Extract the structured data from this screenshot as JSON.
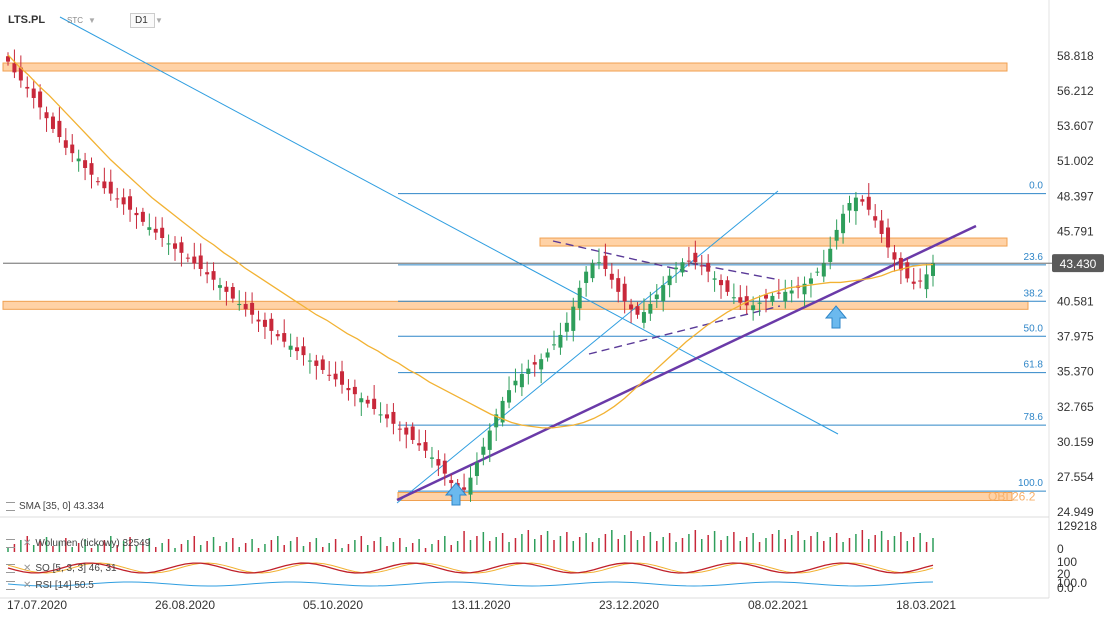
{
  "header": {
    "symbol": "LTS.PL",
    "exchange": "STC",
    "timeframe": "D1"
  },
  "chart_data": {
    "type": "candlestick",
    "y_axis_ticks": [
      "58.818",
      "56.212",
      "53.607",
      "51.002",
      "48.397",
      "45.791",
      "43.186",
      "40.581",
      "37.975",
      "35.370",
      "32.765",
      "30.159",
      "27.554",
      "24.949"
    ],
    "ylim": [
      24.949,
      58.818
    ],
    "x_axis_ticks": [
      "17.07.2020",
      "26.08.2020",
      "05.10.2020",
      "13.11.2020",
      "23.12.2020",
      "08.02.2021",
      "18.03.2021"
    ],
    "current_price": "43.430",
    "fibonacci_levels": [
      {
        "label": "0.0",
        "price": 48.6
      },
      {
        "label": "23.6",
        "price": 43.3
      },
      {
        "label": "38.2",
        "price": 40.6
      },
      {
        "label": "50.0",
        "price": 38.0
      },
      {
        "label": "61.8",
        "price": 35.3
      },
      {
        "label": "78.6",
        "price": 31.4
      },
      {
        "label": "100.0",
        "price": 26.5
      }
    ],
    "resistance_zones": [
      58.0,
      45.0,
      40.3,
      26.1
    ],
    "zone_label": "OBI 26.2",
    "close_series": [
      58.4,
      57.6,
      57.0,
      56.4,
      55.7,
      55.0,
      54.2,
      53.4,
      52.8,
      52.0,
      51.6,
      51.2,
      50.5,
      50.0,
      49.5,
      49.0,
      48.6,
      48.2,
      47.8,
      47.4,
      47.0,
      46.5,
      46.1,
      45.7,
      45.3,
      44.9,
      44.5,
      44.2,
      43.8,
      43.4,
      43.0,
      42.6,
      42.2,
      41.8,
      41.3,
      40.8,
      40.4,
      40.0,
      39.6,
      39.1,
      38.7,
      38.4,
      38.0,
      37.6,
      37.3,
      36.9,
      36.6,
      36.2,
      35.8,
      35.5,
      35.1,
      34.8,
      34.4,
      34.0,
      33.7,
      33.4,
      33.0,
      32.6,
      32.2,
      31.9,
      31.5,
      31.1,
      30.7,
      30.3,
      29.9,
      29.5,
      29.0,
      28.4,
      27.8,
      27.1,
      26.3,
      26.6,
      27.5,
      28.6,
      29.8,
      31.0,
      32.2,
      33.2,
      34.0,
      34.7,
      35.2,
      35.6,
      35.9,
      36.3,
      36.8,
      37.4,
      38.1,
      39.0,
      40.2,
      41.6,
      42.8,
      43.4,
      43.5,
      43.0,
      42.2,
      41.3,
      40.6,
      40.0,
      39.6,
      39.8,
      40.4,
      41.1,
      41.8,
      42.5,
      43.1,
      43.5,
      43.6,
      43.5,
      43.2,
      42.8,
      42.3,
      41.8,
      41.3,
      40.9,
      40.5,
      40.3,
      40.3,
      40.5,
      40.8,
      41.0,
      41.2,
      41.3,
      41.4,
      41.6,
      41.9,
      42.3,
      42.8,
      43.4,
      44.5,
      45.9,
      47.1,
      47.9,
      48.3,
      48.0,
      47.4,
      46.6,
      45.6,
      44.6,
      43.7,
      42.9,
      42.3,
      41.9,
      42.1,
      42.6,
      43.4
    ],
    "indicators": {
      "sma": {
        "label": "SMA",
        "params": "[35, 0]",
        "value": "43.334",
        "series": [
          58.9,
          58.1,
          57.4,
          56.6,
          55.9,
          55.1,
          54.3,
          53.5,
          52.7,
          51.9,
          51.1,
          50.4,
          49.7,
          49.0,
          48.3,
          47.7,
          47.1,
          46.5,
          45.9,
          45.3,
          44.8,
          44.2,
          43.7,
          43.1,
          42.6,
          42.1,
          41.6,
          41.1,
          40.6,
          40.1,
          39.6,
          39.2,
          38.7,
          38.2,
          37.8,
          37.3,
          36.9,
          36.4,
          36.0,
          35.5,
          35.1,
          34.6,
          34.2,
          33.8,
          33.4,
          33.0,
          32.6,
          32.2,
          31.9,
          31.6,
          31.4,
          31.3,
          31.2,
          31.2,
          31.3,
          31.4,
          31.6,
          31.9,
          32.3,
          32.8,
          33.4,
          34.1,
          34.8,
          35.5,
          36.2,
          36.9,
          37.6,
          38.2,
          38.8,
          39.3,
          39.8,
          40.2,
          40.6,
          40.9,
          41.2,
          41.4,
          41.6,
          41.7,
          41.8,
          41.9,
          42.0,
          42.0,
          42.1,
          42.2,
          42.3,
          42.5,
          42.8,
          43.0,
          43.2,
          43.3,
          43.33
        ]
      },
      "volume": {
        "label": "Wolumen",
        "params": "(tickowy)",
        "value": "32549",
        "max": "129218",
        "min": "0"
      },
      "stochastic": {
        "label": "SO",
        "params": "[5, 3, 3]",
        "value": "46, 31",
        "max": "100",
        "mid": "20"
      },
      "rsi": {
        "label": "RSI",
        "params": "[14]",
        "value": "50.5",
        "max": "100.0",
        "min": "0.0"
      }
    }
  }
}
